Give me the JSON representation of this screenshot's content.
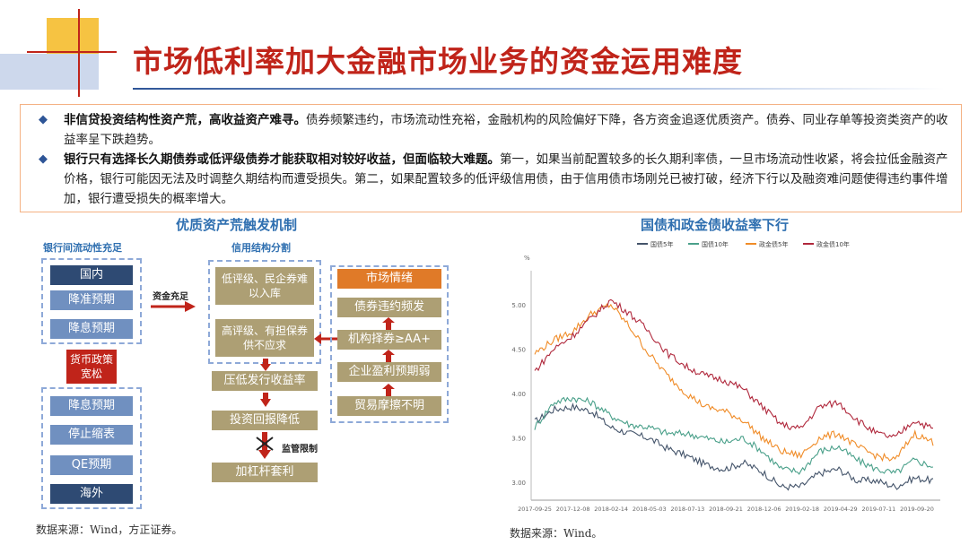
{
  "page": {
    "title": "市场低利率加大金融市场业务的资金运用难度"
  },
  "bullets": [
    {
      "bold": "非信贷投资结构性资产荒，高收益资产难寻。",
      "text": "债券频繁违约，市场流动性充裕，金融机构的风险偏好下降，各方资金追逐优质资产。债券、同业存单等投资类资产的收益率呈下跌趋势。"
    },
    {
      "bold": "银行只有选择长久期债券或低评级债券才能获取相对较好收益，但面临较大难题。",
      "text": "第一，如果当前配置较多的长久期利率债，一旦市场流动性收紧，将会拉低金融资产价格，银行可能因无法及时调整久期结构而遭受损失。第二，如果配置较多的低评级信用债，由于信用债市场刚兑已被打破，经济下行以及融资难问题使得违约事件增加，银行遭受损失的概率增大。"
    }
  ],
  "diagram": {
    "title": "优质资产荒触发机制",
    "left_label": "银行间流动性充足",
    "left_top": [
      "国内",
      "降准预期",
      "降息预期"
    ],
    "policy": "货币政策宽松",
    "left_bottom": [
      "降息预期",
      "停止缩表",
      "QE预期",
      "海外"
    ],
    "arrow_label": "资金充足",
    "middle_label": "信用结构分割",
    "middle_top": [
      "低评级、民企券难以入库",
      "高评级、有担保券供不应求"
    ],
    "middle_flow": [
      "压低发行收益率",
      "投资回报降低",
      "加杠杆套利"
    ],
    "supervision": "监管限制",
    "right_header": "市场情绪",
    "right_items": [
      "债券违约频发",
      "机构择券≥AA+",
      "企业盈利预期弱",
      "贸易摩擦不明"
    ],
    "source": "数据来源：Wind，方正证券。"
  },
  "chart_data": {
    "type": "line",
    "title": "国债和政金债收益率下行",
    "ylabel": "%",
    "ylim": [
      2.8,
      5.3
    ],
    "yticks": [
      "3.00",
      "3.50",
      "4.00",
      "4.50",
      "5.00"
    ],
    "x_ticks": [
      "2017-09-25",
      "2017-12-08",
      "2018-02-14",
      "2018-05-03",
      "2018-07-13",
      "2018-09-21",
      "2018-12-06",
      "2019-02-18",
      "2019-04-29",
      "2019-07-11",
      "2019-09-20"
    ],
    "grid": false,
    "legend_position": "top",
    "series": [
      {
        "name": "国债5年",
        "color": "#44546a",
        "values": [
          3.68,
          3.82,
          3.85,
          3.8,
          3.62,
          3.55,
          3.5,
          3.38,
          3.3,
          3.2,
          3.15,
          3.22,
          3.12,
          2.95,
          2.95,
          3.1,
          3.15,
          3.02,
          3.02,
          2.95,
          3.05,
          3.02
        ]
      },
      {
        "name": "国债10年",
        "color": "#4aa08a",
        "values": [
          3.62,
          3.9,
          3.95,
          3.9,
          3.75,
          3.65,
          3.62,
          3.55,
          3.55,
          3.5,
          3.45,
          3.5,
          3.35,
          3.15,
          3.12,
          3.35,
          3.4,
          3.25,
          3.15,
          3.1,
          3.25,
          3.18
        ]
      },
      {
        "name": "政金债5年",
        "color": "#f08c28",
        "values": [
          4.45,
          4.6,
          4.7,
          4.9,
          5.0,
          4.75,
          4.45,
          4.2,
          4.0,
          3.85,
          3.8,
          3.7,
          3.5,
          3.35,
          3.3,
          3.5,
          3.55,
          3.4,
          3.3,
          3.25,
          3.55,
          3.45
        ]
      },
      {
        "name": "政金债10年",
        "color": "#b0283c",
        "values": [
          4.25,
          4.5,
          4.65,
          4.85,
          5.05,
          4.9,
          4.7,
          4.45,
          4.3,
          4.2,
          4.15,
          4.05,
          3.85,
          3.65,
          3.6,
          3.85,
          3.9,
          3.7,
          3.55,
          3.5,
          3.7,
          3.6
        ]
      }
    ],
    "source": "数据来源：Wind。"
  }
}
